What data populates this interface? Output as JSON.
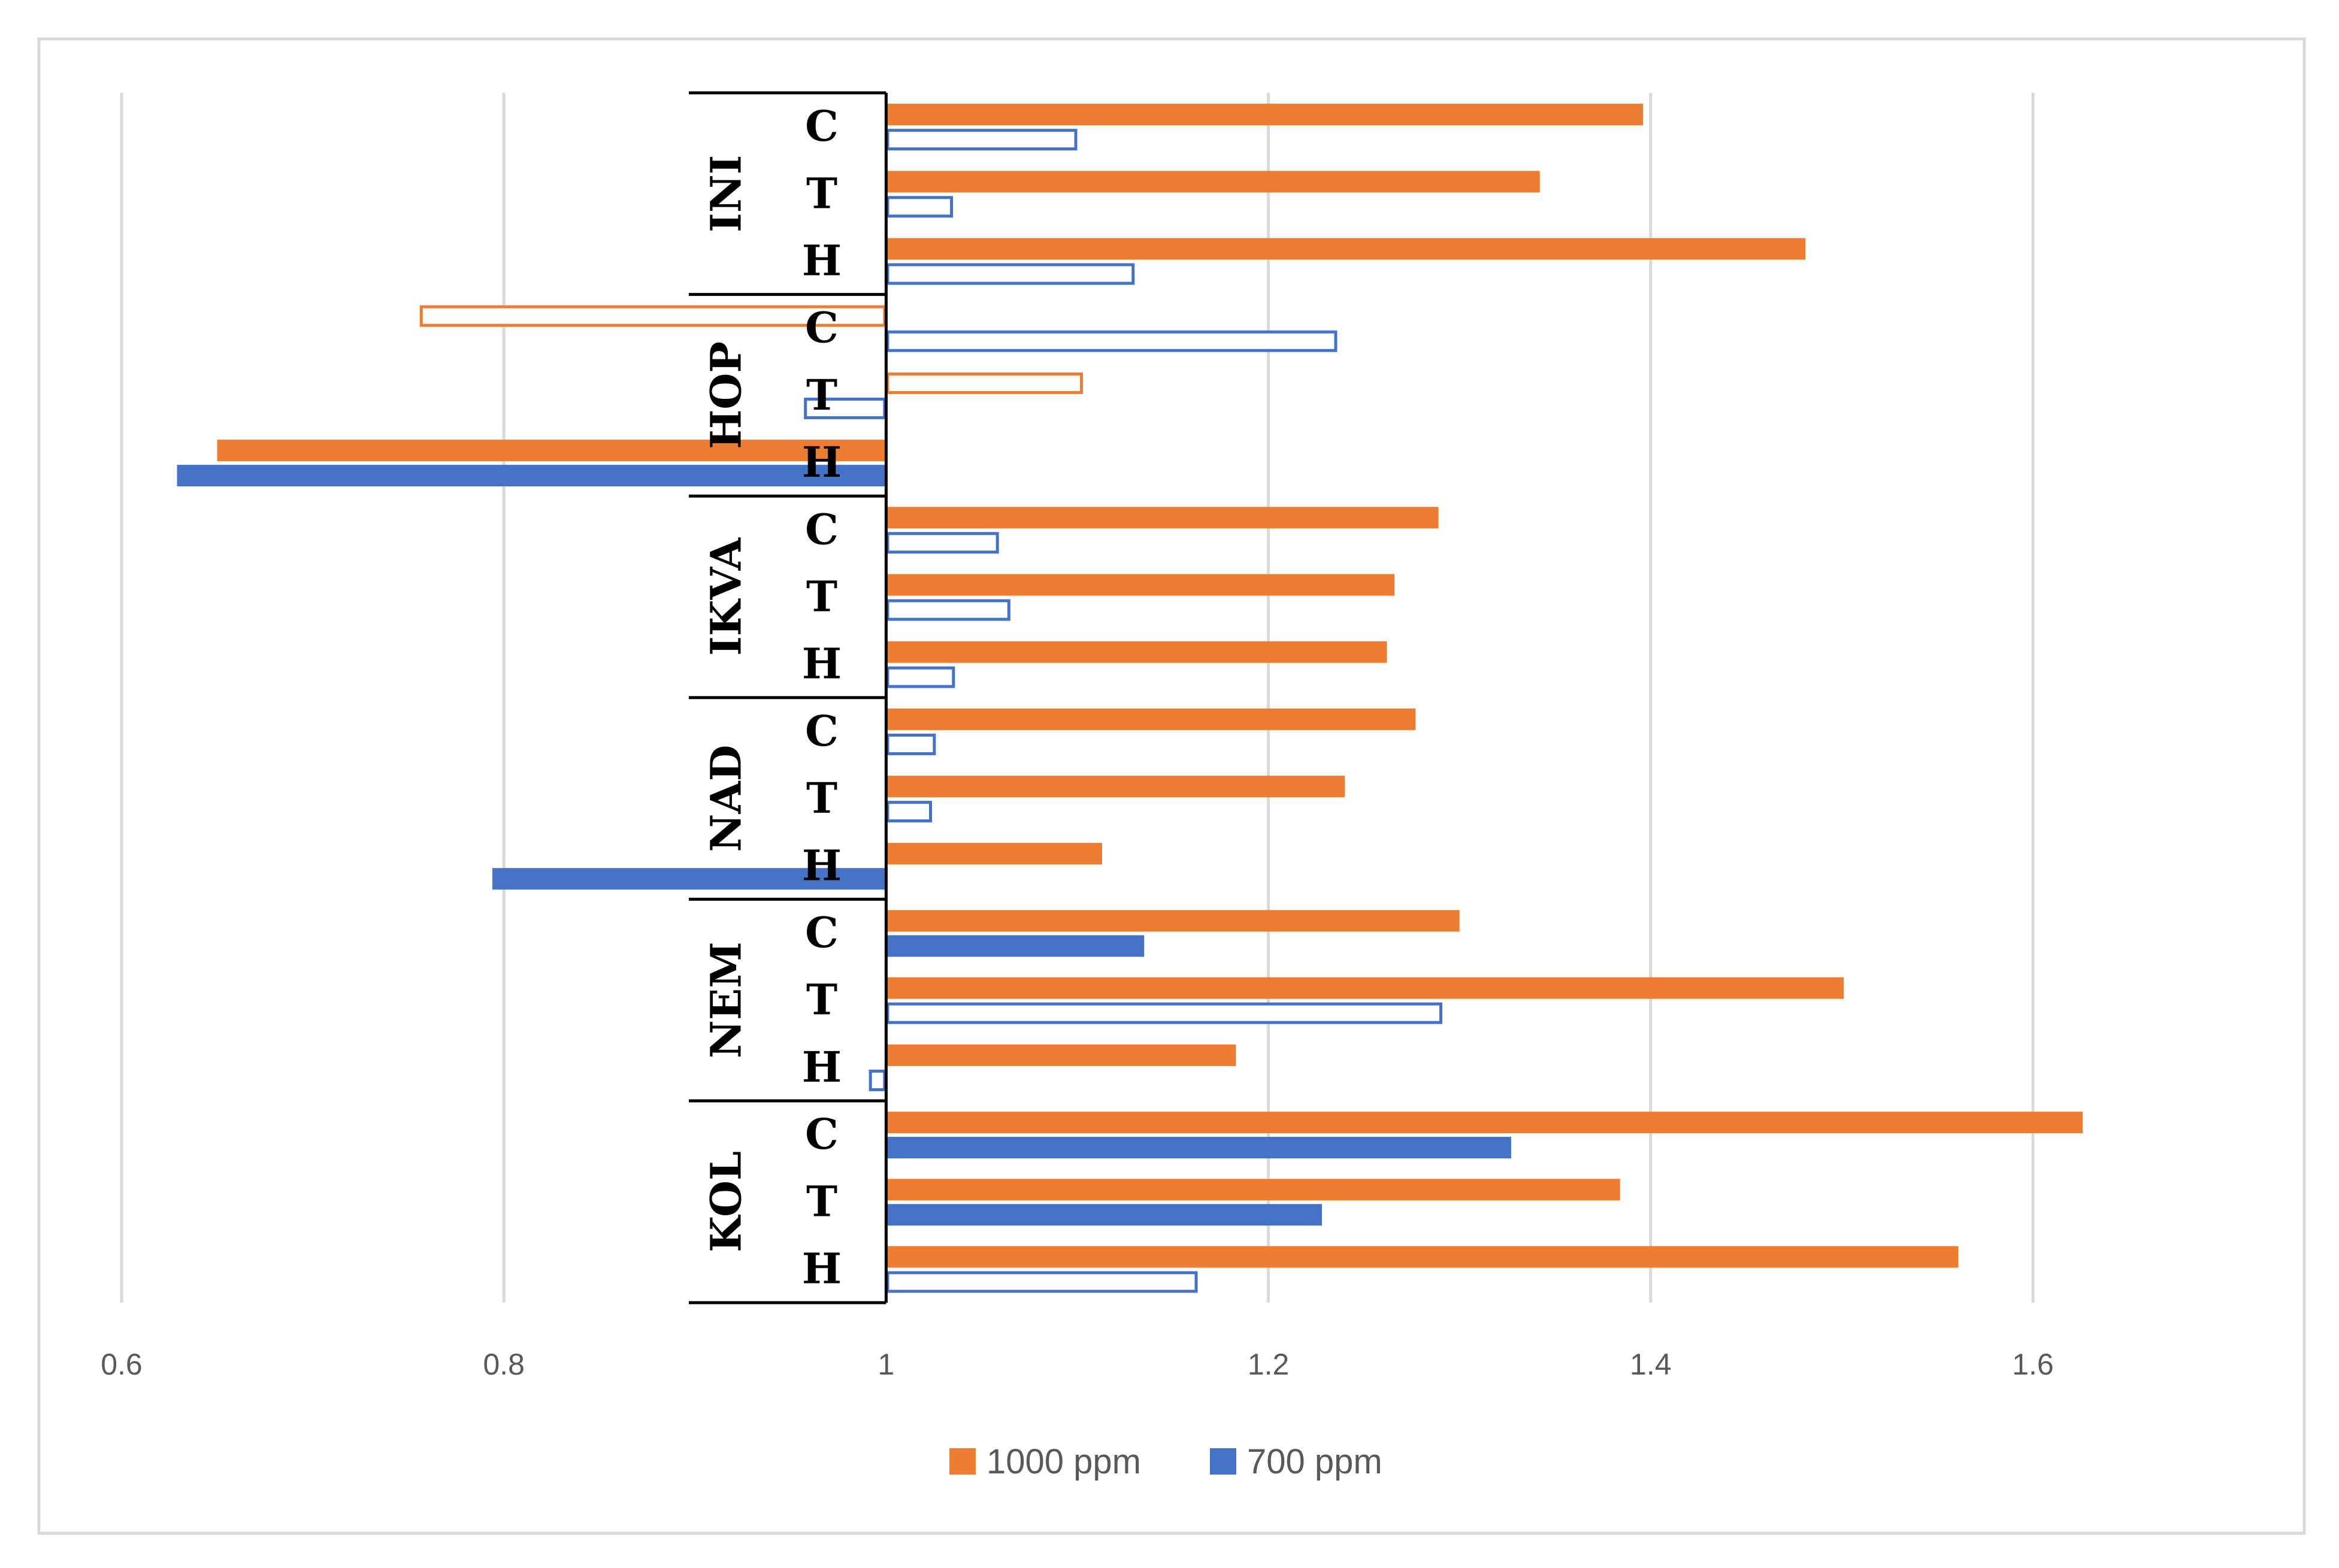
{
  "chart_data": {
    "type": "bar",
    "orientation": "horizontal",
    "xlim": [
      0.6,
      1.6
    ],
    "x_ticks": [
      "0.6",
      "0.8",
      "1",
      "1.2",
      "1.4",
      "1.6"
    ],
    "baseline": 1,
    "grid": true,
    "legend_position": "bottom",
    "colors": {
      "s1000": "#ED7D31",
      "s700": "#4472C4",
      "grid": "#D9D9D9",
      "axis": "#000000"
    },
    "series": [
      {
        "name": "1000 ppm",
        "key": "s1000"
      },
      {
        "name": "700 ppm",
        "key": "s700"
      }
    ],
    "groups": [
      {
        "name": "INI",
        "rows": [
          {
            "label": "C",
            "v1000": 1.396,
            "f1000": true,
            "v700": 1.1,
            "f700": false
          },
          {
            "label": "T",
            "v1000": 1.342,
            "f1000": true,
            "v700": 1.035,
            "f700": false
          },
          {
            "label": "H",
            "v1000": 1.481,
            "f1000": true,
            "v700": 1.13,
            "f700": false
          }
        ]
      },
      {
        "name": "HOP",
        "rows": [
          {
            "label": "C",
            "v1000": 0.756,
            "f1000": false,
            "v700": 1.236,
            "f700": false
          },
          {
            "label": "T",
            "v1000": 1.103,
            "f1000": false,
            "v700": 0.957,
            "f700": false
          },
          {
            "label": "H",
            "v1000": 0.65,
            "f1000": true,
            "v700": 0.629,
            "f700": true
          }
        ]
      },
      {
        "name": "IKVA",
        "rows": [
          {
            "label": "C",
            "v1000": 1.289,
            "f1000": true,
            "v700": 1.059,
            "f700": false
          },
          {
            "label": "T",
            "v1000": 1.266,
            "f1000": true,
            "v700": 1.065,
            "f700": false
          },
          {
            "label": "H",
            "v1000": 1.262,
            "f1000": true,
            "v700": 1.036,
            "f700": false
          }
        ]
      },
      {
        "name": "NAD",
        "rows": [
          {
            "label": "C",
            "v1000": 1.277,
            "f1000": true,
            "v700": 1.026,
            "f700": false
          },
          {
            "label": "T",
            "v1000": 1.24,
            "f1000": true,
            "v700": 1.024,
            "f700": false
          },
          {
            "label": "H",
            "v1000": 1.113,
            "f1000": true,
            "v700": 0.794,
            "f700": true
          }
        ]
      },
      {
        "name": "NEM",
        "rows": [
          {
            "label": "C",
            "v1000": 1.3,
            "f1000": true,
            "v700": 1.135,
            "f700": true
          },
          {
            "label": "T",
            "v1000": 1.501,
            "f1000": true,
            "v700": 1.291,
            "f700": false
          },
          {
            "label": "H",
            "v1000": 1.183,
            "f1000": true,
            "v700": 0.991,
            "f700": false
          }
        ]
      },
      {
        "name": "KOL",
        "rows": [
          {
            "label": "C",
            "v1000": 1.626,
            "f1000": true,
            "v700": 1.327,
            "f700": true
          },
          {
            "label": "T",
            "v1000": 1.384,
            "f1000": true,
            "v700": 1.228,
            "f700": true
          },
          {
            "label": "H",
            "v1000": 1.561,
            "f1000": true,
            "v700": 1.163,
            "f700": false
          }
        ]
      }
    ]
  }
}
